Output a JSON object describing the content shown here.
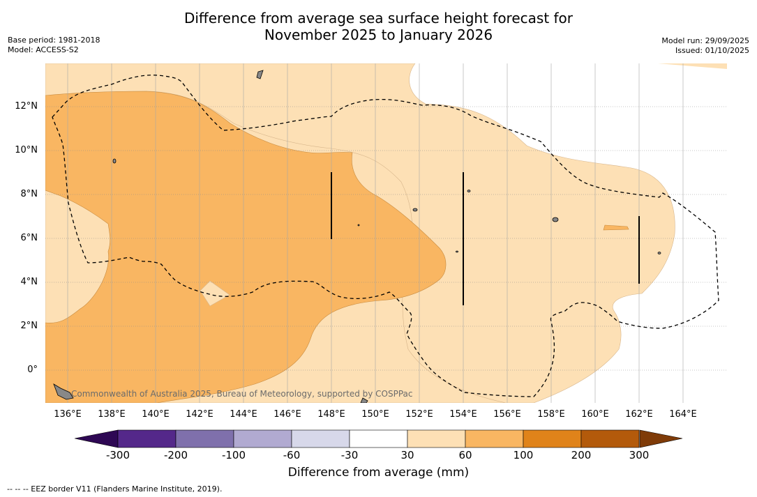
{
  "title": {
    "line1": "Difference from average sea surface height forecast for",
    "line2": "November 2025 to January 2026"
  },
  "meta": {
    "base_period": "Base period: 1981-2018",
    "model": "Model: ACCESS-S2",
    "model_run": "Model run: 29/09/2025",
    "issued": "Issued: 01/10/2025"
  },
  "map": {
    "lat_labels": [
      "12°N",
      "10°N",
      "8°N",
      "6°N",
      "4°N",
      "2°N",
      "0°"
    ],
    "lon_labels": [
      "136°E",
      "138°E",
      "140°E",
      "142°E",
      "144°E",
      "146°E",
      "148°E",
      "150°E",
      "152°E",
      "154°E",
      "156°E",
      "158°E",
      "160°E",
      "162°E",
      "164°E"
    ],
    "credit": "Commonwealth of Australia 2025, Bureau of Meteorology, supported by COSPPac",
    "colors": {
      "land": "#888888",
      "band_30_60": "#fde0b5",
      "band_60_100": "#f9b662"
    }
  },
  "colorbar": {
    "label": "Difference from average (mm)",
    "ticks": [
      "-300",
      "-200",
      "-100",
      "-60",
      "-30",
      "30",
      "60",
      "100",
      "200",
      "300"
    ],
    "colors": {
      "under": "#2e0854",
      "bins": [
        "#54288a",
        "#7f70ac",
        "#b1aad1",
        "#d7d8ea",
        "#ffffff",
        "#fde0b5",
        "#f9b662",
        "#e0831a",
        "#b35a0b"
      ],
      "over": "#7f3b08"
    }
  },
  "footnote": "--  --  -- EEZ border V11 (Flanders Marine Institute, 2019)."
}
